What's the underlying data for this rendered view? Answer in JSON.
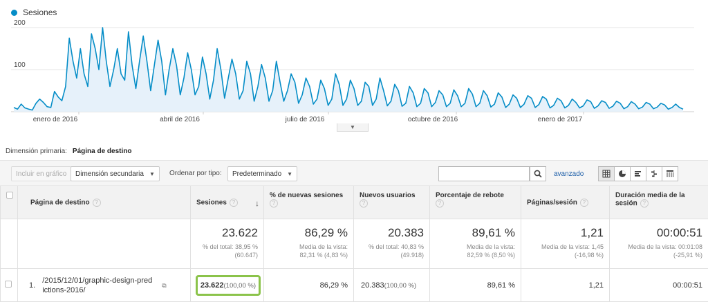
{
  "chart_data": {
    "type": "area",
    "series": [
      {
        "name": "Sesiones",
        "color": "#058dc7"
      }
    ],
    "y_ticks": [
      "200",
      "100"
    ],
    "ylim": [
      0,
      200
    ],
    "x_tick_labels": [
      "enero de 2016",
      "abril de 2016",
      "julio de 2016",
      "octubre de 2016",
      "enero de 2017"
    ],
    "values": [
      10,
      6,
      18,
      9,
      6,
      4,
      20,
      30,
      22,
      12,
      10,
      48,
      35,
      26,
      60,
      175,
      120,
      80,
      150,
      90,
      60,
      185,
      150,
      100,
      200,
      120,
      60,
      100,
      150,
      90,
      75,
      190,
      110,
      55,
      120,
      180,
      120,
      50,
      110,
      170,
      120,
      40,
      100,
      150,
      110,
      40,
      80,
      140,
      100,
      40,
      60,
      130,
      90,
      30,
      75,
      150,
      100,
      32,
      80,
      125,
      90,
      30,
      50,
      120,
      90,
      25,
      60,
      112,
      80,
      25,
      50,
      120,
      70,
      25,
      50,
      90,
      70,
      20,
      40,
      80,
      60,
      18,
      30,
      75,
      55,
      15,
      30,
      90,
      65,
      15,
      30,
      75,
      55,
      15,
      25,
      70,
      60,
      15,
      30,
      80,
      50,
      14,
      25,
      65,
      50,
      13,
      20,
      60,
      45,
      12,
      20,
      55,
      45,
      12,
      22,
      50,
      40,
      12,
      20,
      52,
      38,
      12,
      20,
      55,
      42,
      12,
      20,
      50,
      38,
      11,
      18,
      45,
      35,
      10,
      18,
      40,
      32,
      10,
      18,
      38,
      32,
      10,
      17,
      36,
      30,
      9,
      15,
      32,
      26,
      9,
      15,
      30,
      22,
      9,
      14,
      28,
      24,
      8,
      14,
      26,
      22,
      8,
      13,
      25,
      20,
      7,
      12,
      24,
      18,
      7,
      11,
      22,
      18,
      7,
      11,
      20,
      16,
      6,
      10,
      18,
      10,
      6
    ]
  },
  "legend": {
    "label": "Sesiones"
  },
  "dimension": {
    "label": "Dimensión primaria:",
    "value": "Página de destino"
  },
  "toolbar": {
    "plot_rows": "Incluir en gráfico",
    "secondary_dimension": "Dimensión secundaria",
    "sort_label": "Ordenar por tipo:",
    "sort_value": "Predeterminado",
    "search_placeholder": "",
    "advanced": "avanzado"
  },
  "table": {
    "columns": [
      "Página de destino",
      "Sesiones",
      "% de nuevas sesiones",
      "Nuevos usuarios",
      "Porcentaje de rebote",
      "Páginas/sesión",
      "Duración media de la sesión"
    ],
    "totals": [
      {
        "value": "23.622",
        "sub1": "% del total: 38,95 %",
        "sub2": "(60.647)"
      },
      {
        "value": "86,29 %",
        "sub1": "Media de la vista:",
        "sub2": "82,31 % (4,83 %)"
      },
      {
        "value": "20.383",
        "sub1": "% del total: 40,83 %",
        "sub2": "(49.918)"
      },
      {
        "value": "89,61 %",
        "sub1": "Media de la vista:",
        "sub2": "82,59 % (8,50 %)"
      },
      {
        "value": "1,21",
        "sub1": "Media de la vista: 1,45",
        "sub2": "(-16,98 %)"
      },
      {
        "value": "00:00:51",
        "sub1": "Media de la vista: 00:01:08",
        "sub2": "(-25,91 %)"
      }
    ],
    "rows": [
      {
        "rank": "1.",
        "page_line1": "/2015/12/01/graphic-design-pred",
        "page_line2": "ictions-2016/",
        "sessions": "23.622",
        "sessions_pct": "(100,00 %)",
        "new_sessions": "86,29 %",
        "new_users": "20.383",
        "new_users_pct": "(100,00 %)",
        "bounce": "89,61 %",
        "pages_session": "1,21",
        "avg_duration": "00:00:51"
      }
    ]
  }
}
